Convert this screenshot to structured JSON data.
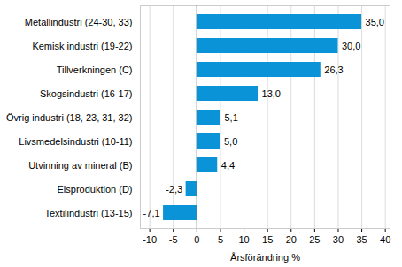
{
  "chart_data": {
    "type": "bar",
    "orientation": "horizontal",
    "categories": [
      "Metallindustri (24-30, 33)",
      "Kemisk industri (19-22)",
      "Tillverkningen (C)",
      "Skogsindustri (16-17)",
      "Övrig industri (18, 23, 31, 32)",
      "Livsmedelsindustri (10-11)",
      "Utvinning av mineral (B)",
      "Elsproduktion (D)",
      "Textilindustri (13-15)"
    ],
    "values": [
      35.0,
      30.0,
      26.3,
      13.0,
      5.1,
      5.0,
      4.4,
      -2.3,
      -7.1
    ],
    "value_labels": [
      "35,0",
      "30,0",
      "26,3",
      "13,0",
      "5,1",
      "5,0",
      "4,4",
      "-2,3",
      "-7,1"
    ],
    "data_labels": true,
    "color": "#0a93d6",
    "x_label": "Årsförändring %",
    "xlim": [
      -12,
      41
    ],
    "xticks": [
      -10,
      -5,
      0,
      5,
      10,
      15,
      20,
      25,
      30,
      35,
      40
    ],
    "grid": true
  }
}
